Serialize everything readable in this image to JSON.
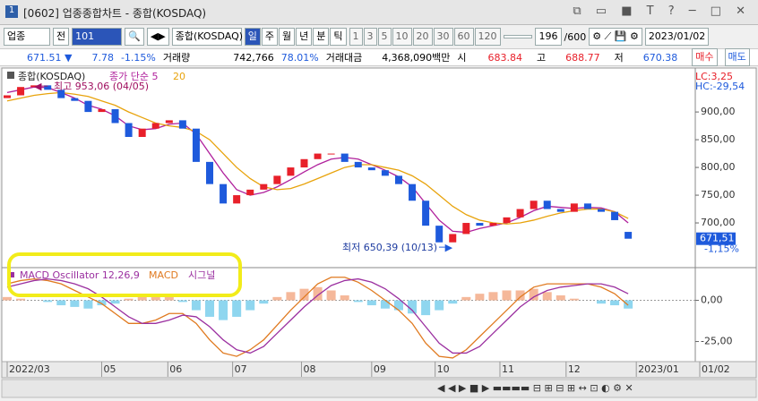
{
  "window": {
    "title": "[0602] 업종종합차트 - 종합(KOSDAQ)"
  },
  "toolbar": {
    "market": "업종",
    "all": "전",
    "code": "101",
    "name": "종합(KOSDAQ)",
    "periods": [
      "일",
      "주",
      "월",
      "년",
      "분",
      "틱"
    ],
    "minutes": [
      "1",
      "3",
      "5",
      "10",
      "20",
      "30",
      "60",
      "120"
    ],
    "count": "196",
    "total": "/600",
    "date": "2023/01/02"
  },
  "info": {
    "price": "671.51 ▼",
    "change": "7.78",
    "rate": "-1.15%",
    "volume_label": "거래량",
    "volume": "742,766",
    "volume_rate": "78.01%",
    "amount_label": "거래대금",
    "amount": "4,368,090백만",
    "open_label": "시",
    "open": "683.84",
    "high_label": "고",
    "high": "688.77",
    "low_label": "저",
    "low": "670.38",
    "buy": "매수",
    "sell": "매도"
  },
  "chart_data": [
    {
      "type": "candlestick",
      "legend_name": "종합(KOSDAQ)",
      "xlim": [
        0,
        51.5
      ],
      "ylim": [
        621,
        976
      ],
      "yticks": [
        {
          "value": 700,
          "label": "700,00"
        },
        {
          "value": 750,
          "label": "750,00"
        },
        {
          "value": 800,
          "label": "800,00"
        },
        {
          "value": 850,
          "label": "850,00"
        },
        {
          "value": 900,
          "label": "900,00"
        }
      ],
      "up_color": "#e8202a",
      "down_color": "#1e5adc",
      "open": [
        925,
        930,
        945,
        948,
        940,
        925,
        920,
        900,
        905,
        880,
        855,
        870,
        880,
        885,
        870,
        810,
        770,
        735,
        750,
        760,
        770,
        785,
        800,
        815,
        825,
        825,
        810,
        800,
        795,
        785,
        770,
        740,
        695,
        665,
        680,
        700,
        695,
        700,
        710,
        725,
        740,
        725,
        720,
        735,
        725,
        720,
        683.84
      ],
      "close": [
        930,
        945,
        948,
        940,
        925,
        920,
        900,
        905,
        880,
        855,
        870,
        880,
        885,
        870,
        810,
        770,
        735,
        750,
        760,
        770,
        785,
        800,
        815,
        825,
        825,
        810,
        800,
        795,
        785,
        770,
        740,
        695,
        665,
        680,
        700,
        695,
        700,
        710,
        725,
        740,
        725,
        720,
        735,
        725,
        720,
        705,
        671.51
      ],
      "series": [
        {
          "name": "종가 단순 5",
          "color": "#b0209c",
          "values": [
            935,
            940,
            945,
            944,
            935,
            925,
            912,
            905,
            893,
            875,
            868,
            870,
            878,
            880,
            860,
            825,
            790,
            760,
            750,
            755,
            765,
            778,
            792,
            805,
            815,
            818,
            815,
            805,
            795,
            783,
            765,
            735,
            705,
            685,
            683,
            690,
            695,
            700,
            710,
            722,
            730,
            728,
            726,
            728,
            727,
            720,
            700
          ]
        },
        {
          "name": "20",
          "color": "#e8a30c",
          "values": [
            920,
            925,
            930,
            933,
            935,
            932,
            928,
            920,
            912,
            900,
            890,
            880,
            875,
            872,
            865,
            850,
            825,
            800,
            780,
            765,
            760,
            762,
            770,
            780,
            790,
            800,
            805,
            805,
            800,
            795,
            785,
            770,
            750,
            730,
            715,
            705,
            700,
            698,
            700,
            705,
            712,
            718,
            722,
            725,
            725,
            720,
            708
          ]
        }
      ],
      "high_note": "최고 953,06 (04/05)",
      "low_note": "최저 650,39 (10/13)",
      "lc": "LC:3,25",
      "hc": "HC:-29,54",
      "last_label": "671,51",
      "last_rate": "-1,15%"
    },
    {
      "type": "macd",
      "xlim": [
        0,
        51.5
      ],
      "ylim": [
        -37.2,
        19.3
      ],
      "yticks": [
        {
          "value": 0,
          "label": "0,00"
        },
        {
          "value": -25,
          "label": "-25,00"
        }
      ],
      "xticks": [
        {
          "value": 0,
          "label": "2022/03"
        },
        {
          "value": 7,
          "label": "05"
        },
        {
          "value": 11.9,
          "label": "06"
        },
        {
          "value": 16.7,
          "label": "07"
        },
        {
          "value": 21.8,
          "label": "08"
        },
        {
          "value": 27,
          "label": "09"
        },
        {
          "value": 31.7,
          "label": "10"
        },
        {
          "value": 36.5,
          "label": "11"
        },
        {
          "value": 41.4,
          "label": "12"
        },
        {
          "value": 46.6,
          "label": "2023/01"
        },
        {
          "value": 51.3,
          "label": "01/02"
        }
      ],
      "oscillator": {
        "name": "MACD Oscillator 12,26,9",
        "color": "#9b30a0",
        "pos_color": "#f5b89a",
        "neg_color": "#8fd6ef",
        "values": [
          2,
          1,
          0,
          -1,
          -3,
          -4,
          -5,
          -3,
          -2,
          1,
          2,
          3,
          2,
          -1,
          -6,
          -10,
          -12,
          -10,
          -6,
          -2,
          2,
          5,
          7,
          8,
          6,
          3,
          -1,
          -3,
          -5,
          -6,
          -8,
          -9,
          -6,
          -2,
          2,
          4,
          5,
          6,
          6,
          7,
          5,
          3,
          1,
          0,
          -2,
          -3,
          -5
        ]
      },
      "series": [
        {
          "name": "MACD",
          "color": "#e07a20",
          "values": [
            10,
            12,
            13,
            12,
            10,
            6,
            2,
            -2,
            -8,
            -14,
            -14,
            -12,
            -8,
            -8,
            -14,
            -24,
            -32,
            -34,
            -30,
            -24,
            -15,
            -6,
            2,
            10,
            14,
            14,
            11,
            6,
            0,
            -6,
            -14,
            -26,
            -34,
            -35,
            -30,
            -22,
            -14,
            -6,
            2,
            8,
            10,
            10,
            10,
            10,
            8,
            4,
            -3
          ]
        },
        {
          "name": "시그널",
          "color": "#9b30a0",
          "values": [
            8,
            10,
            12,
            13,
            12,
            10,
            7,
            2,
            -4,
            -10,
            -14,
            -14,
            -12,
            -9,
            -10,
            -16,
            -24,
            -30,
            -32,
            -28,
            -20,
            -12,
            -4,
            3,
            9,
            12,
            13,
            11,
            7,
            1,
            -6,
            -16,
            -26,
            -32,
            -32,
            -28,
            -20,
            -12,
            -4,
            2,
            6,
            8,
            9,
            10,
            10,
            8,
            4
          ]
        }
      ]
    }
  ]
}
